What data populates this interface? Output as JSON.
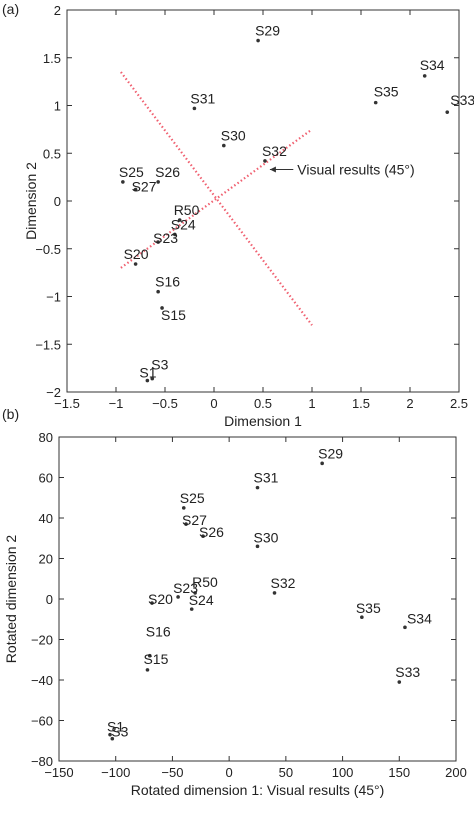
{
  "figure": {
    "panel_a_label": "(a)",
    "panel_b_label": "(b)"
  },
  "chart_data": [
    {
      "type": "scatter",
      "panel": "(a)",
      "xlabel": "Dimension 1",
      "ylabel": "Dimension 2",
      "xlim": [
        -1.5,
        2.5
      ],
      "ylim": [
        -2,
        2
      ],
      "xticks": [
        -1.5,
        -1,
        -0.5,
        0,
        0.5,
        1,
        1.5,
        2,
        2.5
      ],
      "xtick_labels": [
        "−1.5",
        "−1",
        "−0.5",
        "0",
        "0.5",
        "1",
        "1.5",
        "2",
        "2.5"
      ],
      "yticks": [
        -2,
        -1.5,
        -1,
        -0.5,
        0,
        0.5,
        1,
        1.5,
        2
      ],
      "ytick_labels": [
        "−2",
        "−1.5",
        "−1",
        "−0.5",
        "0",
        "0.5",
        "1",
        "1.5",
        "2"
      ],
      "grid": false,
      "point_color": "#333333",
      "points": [
        {
          "label": "S29",
          "x": 0.45,
          "y": 1.68
        },
        {
          "label": "S34",
          "x": 2.15,
          "y": 1.31
        },
        {
          "label": "S35",
          "x": 1.65,
          "y": 1.03
        },
        {
          "label": "S33",
          "x": 2.38,
          "y": 0.93
        },
        {
          "label": "S31",
          "x": -0.2,
          "y": 0.97
        },
        {
          "label": "S30",
          "x": 0.1,
          "y": 0.58
        },
        {
          "label": "S32",
          "x": 0.52,
          "y": 0.42
        },
        {
          "label": "S25",
          "x": -0.93,
          "y": 0.2
        },
        {
          "label": "S27",
          "x": -0.8,
          "y": 0.12
        },
        {
          "label": "S26",
          "x": -0.57,
          "y": 0.2
        },
        {
          "label": "R50",
          "x": -0.35,
          "y": -0.2
        },
        {
          "label": "S24",
          "x": -0.4,
          "y": -0.35
        },
        {
          "label": "S23",
          "x": -0.57,
          "y": -0.43
        },
        {
          "label": "S20",
          "x": -0.8,
          "y": -0.66
        },
        {
          "label": "S16",
          "x": -0.57,
          "y": -0.95
        },
        {
          "label": "S15",
          "x": -0.53,
          "y": -1.12
        },
        {
          "label": "S1",
          "x": -0.68,
          "y": -1.88
        },
        {
          "label": "S3",
          "x": -0.63,
          "y": -1.86
        }
      ],
      "lines": [
        {
          "from": [
            -0.95,
            1.35
          ],
          "to": [
            1.0,
            -1.3
          ],
          "color": "#f06070",
          "style": "dotted"
        },
        {
          "from": [
            -0.95,
            -0.7
          ],
          "to": [
            1.0,
            0.75
          ],
          "color": "#f06070",
          "style": "dotted"
        }
      ],
      "annotation": {
        "text": "Visual results (45°)",
        "arrow_to": [
          0.55,
          0.33
        ],
        "text_at": [
          0.85,
          0.33
        ]
      }
    },
    {
      "type": "scatter",
      "panel": "(b)",
      "xlabel": "Rotated dimension 1: Visual results (45°)",
      "ylabel": "Rotated dimension 2",
      "xlim": [
        -150,
        200
      ],
      "ylim": [
        -80,
        80
      ],
      "xticks": [
        -150,
        -100,
        -50,
        0,
        50,
        100,
        150,
        200
      ],
      "xtick_labels": [
        "−150",
        "−100",
        "−50",
        "0",
        "50",
        "100",
        "150",
        "200"
      ],
      "yticks": [
        -80,
        -60,
        -40,
        -20,
        0,
        20,
        40,
        60,
        80
      ],
      "ytick_labels": [
        "−80",
        "−60",
        "−40",
        "−20",
        "0",
        "20",
        "40",
        "60",
        "80"
      ],
      "grid": false,
      "point_color": "#333333",
      "points": [
        {
          "label": "S29",
          "x": 82,
          "y": 67
        },
        {
          "label": "S31",
          "x": 25,
          "y": 55
        },
        {
          "label": "S25",
          "x": -40,
          "y": 45
        },
        {
          "label": "S27",
          "x": -38,
          "y": 37
        },
        {
          "label": "S26",
          "x": -23,
          "y": 31
        },
        {
          "label": "S30",
          "x": 25,
          "y": 26
        },
        {
          "label": "R50",
          "x": -30,
          "y": 3
        },
        {
          "label": "S23",
          "x": -45,
          "y": 1
        },
        {
          "label": "S20",
          "x": -68,
          "y": -2
        },
        {
          "label": "S24",
          "x": -33,
          "y": -5
        },
        {
          "label": "S32",
          "x": 40,
          "y": 3
        },
        {
          "label": "S35",
          "x": 117,
          "y": -9
        },
        {
          "label": "S34",
          "x": 155,
          "y": -14
        },
        {
          "label": "S16",
          "x": -70,
          "y": -28
        },
        {
          "label": "S15",
          "x": -72,
          "y": -35
        },
        {
          "label": "S33",
          "x": 150,
          "y": -41
        },
        {
          "label": "S1",
          "x": -105,
          "y": -67
        },
        {
          "label": "S3",
          "x": -103,
          "y": -69
        }
      ]
    }
  ]
}
